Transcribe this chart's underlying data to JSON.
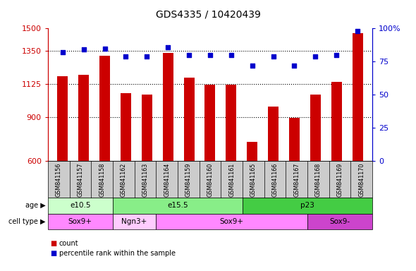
{
  "title": "GDS4335 / 10420439",
  "samples": [
    "GSM841156",
    "GSM841157",
    "GSM841158",
    "GSM841162",
    "GSM841163",
    "GSM841164",
    "GSM841159",
    "GSM841160",
    "GSM841161",
    "GSM841165",
    "GSM841166",
    "GSM841167",
    "GSM841168",
    "GSM841169",
    "GSM841170"
  ],
  "counts": [
    1175,
    1185,
    1315,
    1060,
    1050,
    1335,
    1165,
    1120,
    1120,
    730,
    970,
    895,
    1050,
    1140,
    1470
  ],
  "percentiles": [
    82,
    84,
    85,
    79,
    79,
    86,
    80,
    80,
    80,
    72,
    79,
    72,
    79,
    80,
    98
  ],
  "ylim_left": [
    600,
    1500
  ],
  "ylim_right": [
    0,
    100
  ],
  "yticks_left": [
    600,
    900,
    1125,
    1350,
    1500
  ],
  "yticks_right": [
    0,
    25,
    50,
    75,
    100
  ],
  "bar_color": "#cc0000",
  "dot_color": "#0000cc",
  "age_groups": [
    {
      "label": "e10.5",
      "start": 0,
      "end": 3,
      "color": "#ccffcc"
    },
    {
      "label": "e15.5",
      "start": 3,
      "end": 9,
      "color": "#88ee88"
    },
    {
      "label": "p23",
      "start": 9,
      "end": 15,
      "color": "#44cc44"
    }
  ],
  "cell_groups": [
    {
      "label": "Sox9+",
      "start": 0,
      "end": 3,
      "color": "#ff88ff"
    },
    {
      "label": "Ngn3+",
      "start": 3,
      "end": 5,
      "color": "#ffccff"
    },
    {
      "label": "Sox9+",
      "start": 5,
      "end": 12,
      "color": "#ff88ff"
    },
    {
      "label": "Sox9-",
      "start": 12,
      "end": 15,
      "color": "#cc44cc"
    }
  ],
  "left_axis_color": "#cc0000",
  "right_axis_color": "#0000cc",
  "tick_label_area_color": "#cccccc",
  "bar_width": 0.5
}
